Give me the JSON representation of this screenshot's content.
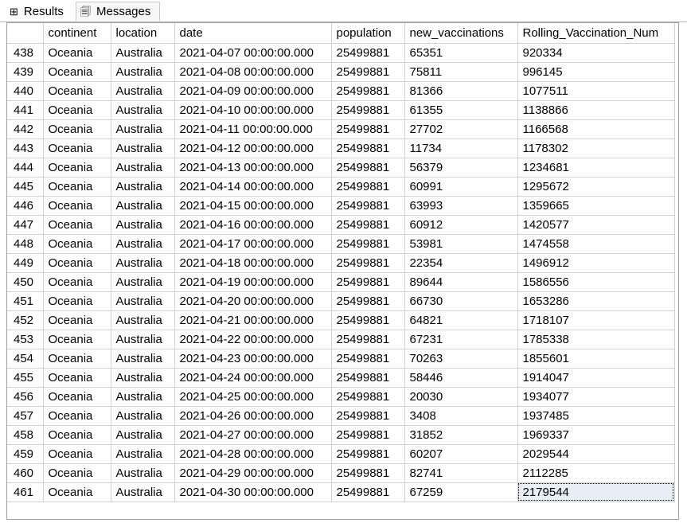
{
  "tabs": [
    {
      "label": "Results",
      "icon": "grid-icon"
    },
    {
      "label": "Messages",
      "icon": "messages-icon"
    }
  ],
  "columns": [
    "",
    "continent",
    "location",
    "date",
    "population",
    "new_vaccinations",
    "Rolling_Vaccination_Num"
  ],
  "rows": [
    [
      "438",
      "Oceania",
      "Australia",
      "2021-04-07 00:00:00.000",
      "25499881",
      "65351",
      "920334"
    ],
    [
      "439",
      "Oceania",
      "Australia",
      "2021-04-08 00:00:00.000",
      "25499881",
      "75811",
      "996145"
    ],
    [
      "440",
      "Oceania",
      "Australia",
      "2021-04-09 00:00:00.000",
      "25499881",
      "81366",
      "1077511"
    ],
    [
      "441",
      "Oceania",
      "Australia",
      "2021-04-10 00:00:00.000",
      "25499881",
      "61355",
      "1138866"
    ],
    [
      "442",
      "Oceania",
      "Australia",
      "2021-04-11 00:00:00.000",
      "25499881",
      "27702",
      "1166568"
    ],
    [
      "443",
      "Oceania",
      "Australia",
      "2021-04-12 00:00:00.000",
      "25499881",
      "11734",
      "1178302"
    ],
    [
      "444",
      "Oceania",
      "Australia",
      "2021-04-13 00:00:00.000",
      "25499881",
      "56379",
      "1234681"
    ],
    [
      "445",
      "Oceania",
      "Australia",
      "2021-04-14 00:00:00.000",
      "25499881",
      "60991",
      "1295672"
    ],
    [
      "446",
      "Oceania",
      "Australia",
      "2021-04-15 00:00:00.000",
      "25499881",
      "63993",
      "1359665"
    ],
    [
      "447",
      "Oceania",
      "Australia",
      "2021-04-16 00:00:00.000",
      "25499881",
      "60912",
      "1420577"
    ],
    [
      "448",
      "Oceania",
      "Australia",
      "2021-04-17 00:00:00.000",
      "25499881",
      "53981",
      "1474558"
    ],
    [
      "449",
      "Oceania",
      "Australia",
      "2021-04-18 00:00:00.000",
      "25499881",
      "22354",
      "1496912"
    ],
    [
      "450",
      "Oceania",
      "Australia",
      "2021-04-19 00:00:00.000",
      "25499881",
      "89644",
      "1586556"
    ],
    [
      "451",
      "Oceania",
      "Australia",
      "2021-04-20 00:00:00.000",
      "25499881",
      "66730",
      "1653286"
    ],
    [
      "452",
      "Oceania",
      "Australia",
      "2021-04-21 00:00:00.000",
      "25499881",
      "64821",
      "1718107"
    ],
    [
      "453",
      "Oceania",
      "Australia",
      "2021-04-22 00:00:00.000",
      "25499881",
      "67231",
      "1785338"
    ],
    [
      "454",
      "Oceania",
      "Australia",
      "2021-04-23 00:00:00.000",
      "25499881",
      "70263",
      "1855601"
    ],
    [
      "455",
      "Oceania",
      "Australia",
      "2021-04-24 00:00:00.000",
      "25499881",
      "58446",
      "1914047"
    ],
    [
      "456",
      "Oceania",
      "Australia",
      "2021-04-25 00:00:00.000",
      "25499881",
      "20030",
      "1934077"
    ],
    [
      "457",
      "Oceania",
      "Australia",
      "2021-04-26 00:00:00.000",
      "25499881",
      "3408",
      "1937485"
    ],
    [
      "458",
      "Oceania",
      "Australia",
      "2021-04-27 00:00:00.000",
      "25499881",
      "31852",
      "1969337"
    ],
    [
      "459",
      "Oceania",
      "Australia",
      "2021-04-28 00:00:00.000",
      "25499881",
      "60207",
      "2029544"
    ],
    [
      "460",
      "Oceania",
      "Australia",
      "2021-04-29 00:00:00.000",
      "25499881",
      "82741",
      "2112285"
    ],
    [
      "461",
      "Oceania",
      "Australia",
      "2021-04-30 00:00:00.000",
      "25499881",
      "67259",
      "2179544"
    ]
  ],
  "selected_cell": {
    "row": 23,
    "col": 6
  }
}
